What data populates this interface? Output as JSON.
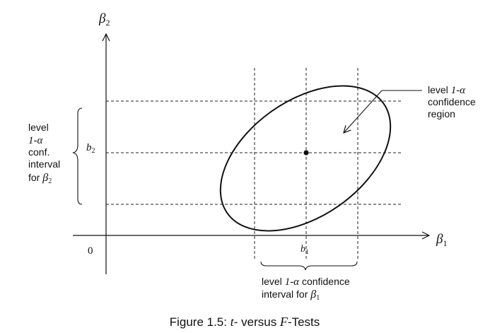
{
  "axes": {
    "y_label": "β",
    "y_sub": "2",
    "x_label": "β",
    "x_sub": "1",
    "origin": "0"
  },
  "estimates": {
    "b2": "b",
    "b2_sub": "2",
    "b1": "b",
    "b1_sub": "1"
  },
  "region_label": {
    "line1_a": "level ",
    "line1_b": "1-α",
    "line2": "confidence",
    "line3": "region"
  },
  "y_interval": {
    "line1": "level",
    "line2": "1-α",
    "line3": "conf.",
    "line4": "interval",
    "line5_a": "for ",
    "line5_b": "β",
    "line5_sub": "2"
  },
  "x_interval": {
    "line1_a": "level ",
    "line1_b": "1-α",
    "line1_c": " confidence",
    "line2_a": "interval for ",
    "line2_b": "β",
    "line2_sub": "1"
  },
  "caption": {
    "prefix": "Figure 1.5: ",
    "t": "t",
    "mid": "- versus ",
    "f": "F",
    "suffix": "-Tests"
  },
  "colors": {
    "ink": "#111111",
    "background": "#ffffff"
  }
}
